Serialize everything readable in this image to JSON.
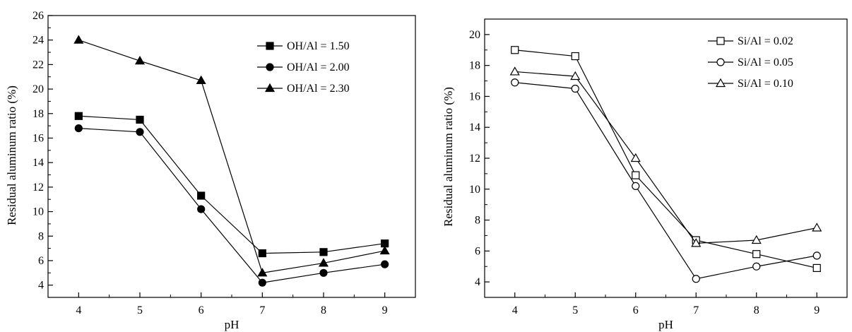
{
  "chart_data": [
    {
      "type": "line",
      "xlabel": "pH",
      "ylabel": "Residual aluminum ratio (%)",
      "x": [
        4,
        5,
        6,
        7,
        8,
        9
      ],
      "xlim": [
        3.5,
        9.5
      ],
      "ylim": [
        3,
        26
      ],
      "xticks": [
        "4",
        "5",
        "6",
        "7",
        "8",
        "9"
      ],
      "yticks": [
        "4",
        "6",
        "8",
        "10",
        "12",
        "14",
        "16",
        "18",
        "20",
        "22",
        "24",
        "26"
      ],
      "grid": false,
      "legend_position": "top-right",
      "series": [
        {
          "name": "OH/Al = 1.50",
          "marker": "square-filled",
          "values": [
            17.8,
            17.5,
            11.3,
            6.6,
            6.7,
            7.4
          ]
        },
        {
          "name": "OH/Al = 2.00",
          "marker": "circle-filled",
          "values": [
            16.8,
            16.5,
            10.2,
            4.2,
            5.0,
            5.7
          ]
        },
        {
          "name": "OH/Al = 2.30",
          "marker": "triangle-filled",
          "values": [
            24.0,
            22.3,
            20.7,
            5.0,
            5.8,
            6.8
          ]
        }
      ]
    },
    {
      "type": "line",
      "xlabel": "pH",
      "ylabel": "Residual aluminum ratio (%)",
      "x": [
        4,
        5,
        6,
        7,
        8,
        9
      ],
      "xlim": [
        3.5,
        9.5
      ],
      "ylim": [
        3,
        21
      ],
      "xticks": [
        "4",
        "5",
        "6",
        "7",
        "8",
        "9"
      ],
      "yticks": [
        "4",
        "6",
        "8",
        "10",
        "12",
        "14",
        "16",
        "18",
        "20"
      ],
      "grid": false,
      "legend_position": "top-right",
      "series": [
        {
          "name": "Si/Al = 0.02",
          "marker": "square-open",
          "values": [
            19.0,
            18.6,
            10.9,
            6.7,
            5.8,
            4.9
          ]
        },
        {
          "name": "Si/Al = 0.05",
          "marker": "circle-open",
          "values": [
            16.9,
            16.5,
            10.2,
            4.2,
            5.0,
            5.7
          ]
        },
        {
          "name": "Si/Al = 0.10",
          "marker": "triangle-open",
          "values": [
            17.6,
            17.3,
            12.0,
            6.5,
            6.7,
            7.5
          ]
        }
      ]
    }
  ]
}
